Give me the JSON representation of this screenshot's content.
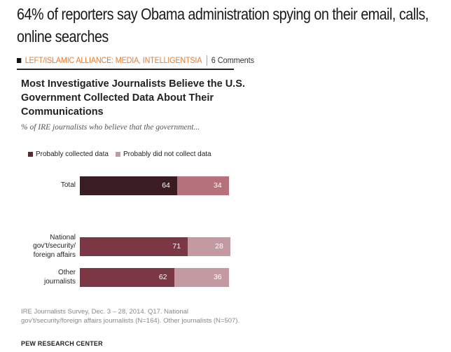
{
  "article": {
    "headline": "64% of reporters say Obama administration spying on their email, calls, online searches",
    "category": "LEFT/ISLAMIC ALLIANCE: MEDIA, INTELLIGENTSIA",
    "comments": "6 Comments"
  },
  "chart_data": {
    "type": "bar",
    "orientation": "horizontal-stacked",
    "title": "Most Investigative Journalists Believe the U.S. Government Collected Data About Their Communications",
    "subtitle": "% of IRE journalists who believe that the government...",
    "categories": [
      "Total",
      "National gov't/security/ foreign affairs",
      "Other journalists"
    ],
    "category_lines": [
      [
        "Total"
      ],
      [
        "National",
        "gov't/security/",
        "foreign affairs"
      ],
      [
        "Other",
        "journalists"
      ]
    ],
    "series": [
      {
        "name": "Probably collected data",
        "values": [
          64,
          71,
          62
        ]
      },
      {
        "name": "Probably did not collect data",
        "values": [
          34,
          28,
          36
        ]
      }
    ],
    "colors": {
      "total_collected": "#3a1d22",
      "collected": "#7b3744",
      "not_collected": "#c49aa2",
      "not_collected_total": "#b5717c"
    },
    "note": "IRE Journalists Survey, Dec. 3 – 28, 2014. Q17. National gov't/security/foreign affairs journalists (N=164). Other journalists (N=507).",
    "source": "PEW RESEARCH CENTER"
  }
}
